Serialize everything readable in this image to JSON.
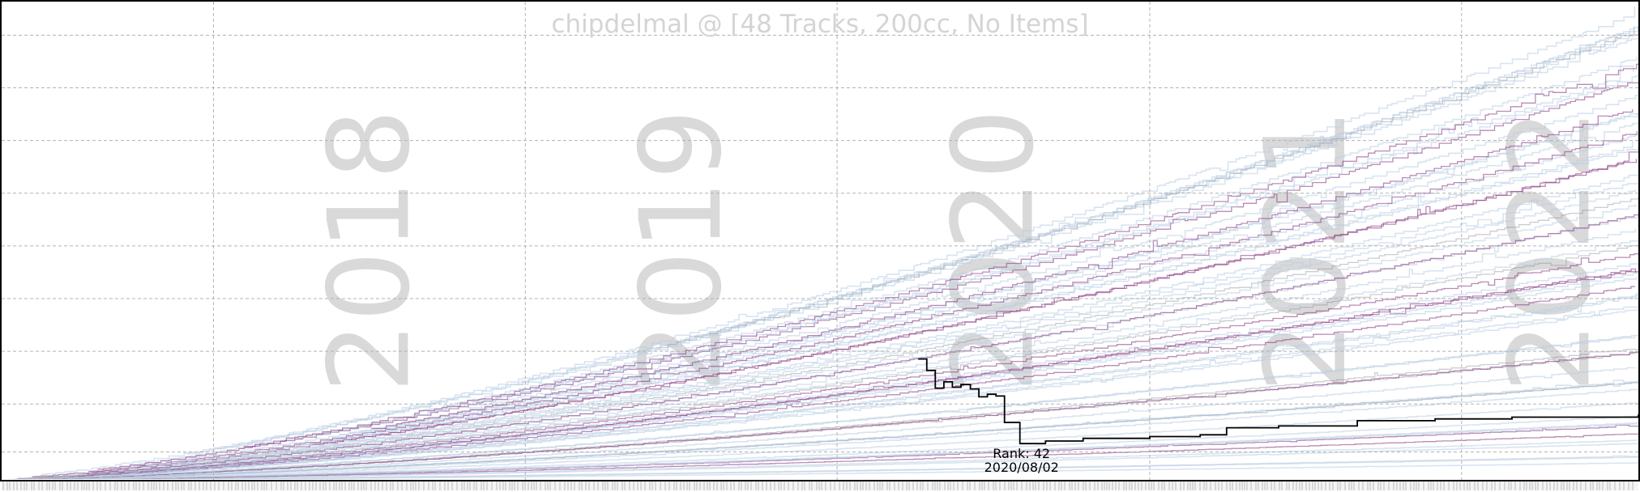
{
  "chart_data": {
    "type": "line",
    "title": "chipdelmal @ [48 Tracks, 200cc, No Items]",
    "xlabel": "",
    "ylabel": "",
    "x_range": [
      "2017-04-28",
      "2022-07-27"
    ],
    "year_labels": [
      "2018",
      "2019",
      "2020",
      "2021",
      "2022"
    ],
    "grid": true,
    "legend": "none",
    "colors": {
      "highlight": "#000000",
      "background_series": "#b9cde3",
      "purple_series": "#8a3f86",
      "gray_series": "#8b9096",
      "grid": "#b3b3b3",
      "year_watermark": "#d9d9d9",
      "title": "#d4d4d4"
    },
    "highlight_series": {
      "name": "chipdelmal",
      "points": [
        [
          "2020-04-05",
          138
        ],
        [
          "2020-04-15",
          125
        ],
        [
          "2020-04-25",
          105
        ],
        [
          "2020-05-05",
          112
        ],
        [
          "2020-05-15",
          106
        ],
        [
          "2020-05-25",
          109
        ],
        [
          "2020-06-05",
          104
        ],
        [
          "2020-06-15",
          95
        ],
        [
          "2020-06-25",
          98
        ],
        [
          "2020-07-05",
          96
        ],
        [
          "2020-07-15",
          66
        ],
        [
          "2020-08-02",
          42
        ],
        [
          "2020-09-01",
          45
        ],
        [
          "2020-10-15",
          48
        ],
        [
          "2021-01-01",
          50
        ],
        [
          "2021-03-01",
          52
        ],
        [
          "2021-04-01",
          60
        ],
        [
          "2021-06-01",
          62
        ],
        [
          "2021-09-01",
          68
        ],
        [
          "2021-12-01",
          70
        ],
        [
          "2022-03-01",
          72
        ],
        [
          "2022-07-27",
          75
        ]
      ]
    },
    "annotation": {
      "date": "2020-08-02",
      "rank": 42,
      "line1": "Rank: 42",
      "line2": "2020/08/02"
    }
  }
}
